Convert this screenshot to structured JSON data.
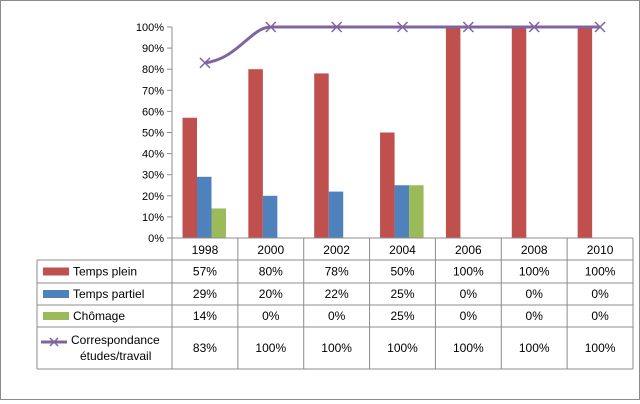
{
  "chart_data": {
    "type": "bar",
    "title": "",
    "xlabel": "",
    "ylabel": "",
    "ylim": [
      0,
      100
    ],
    "y_ticks": [
      "0%",
      "10%",
      "20%",
      "30%",
      "40%",
      "50%",
      "60%",
      "70%",
      "80%",
      "90%",
      "100%"
    ],
    "categories": [
      "1998",
      "2000",
      "2002",
      "2004",
      "2006",
      "2008",
      "2010"
    ],
    "series": [
      {
        "name": "Temps plein",
        "kind": "bar",
        "color": "#c0504d",
        "values": [
          57,
          80,
          78,
          50,
          100,
          100,
          100
        ],
        "labels": [
          "57%",
          "80%",
          "78%",
          "50%",
          "100%",
          "100%",
          "100%"
        ]
      },
      {
        "name": "Temps partiel",
        "kind": "bar",
        "color": "#4f81bd",
        "values": [
          29,
          20,
          22,
          25,
          0,
          0,
          0
        ],
        "labels": [
          "29%",
          "20%",
          "22%",
          "25%",
          "0%",
          "0%",
          "0%"
        ]
      },
      {
        "name": "Chômage",
        "kind": "bar",
        "color": "#9bbb59",
        "values": [
          14,
          0,
          0,
          25,
          0,
          0,
          0
        ],
        "labels": [
          "14%",
          "0%",
          "0%",
          "25%",
          "0%",
          "0%",
          "0%"
        ]
      },
      {
        "name": "Correspondance études/travail",
        "name_lines": [
          "Correspondance",
          "études/travail"
        ],
        "kind": "line",
        "marker": "x",
        "color": "#8064a2",
        "values": [
          83,
          100,
          100,
          100,
          100,
          100,
          100
        ],
        "labels": [
          "83%",
          "100%",
          "100%",
          "100%",
          "100%",
          "100%",
          "100%"
        ]
      }
    ],
    "grid": false,
    "legend": "data-table-below"
  }
}
